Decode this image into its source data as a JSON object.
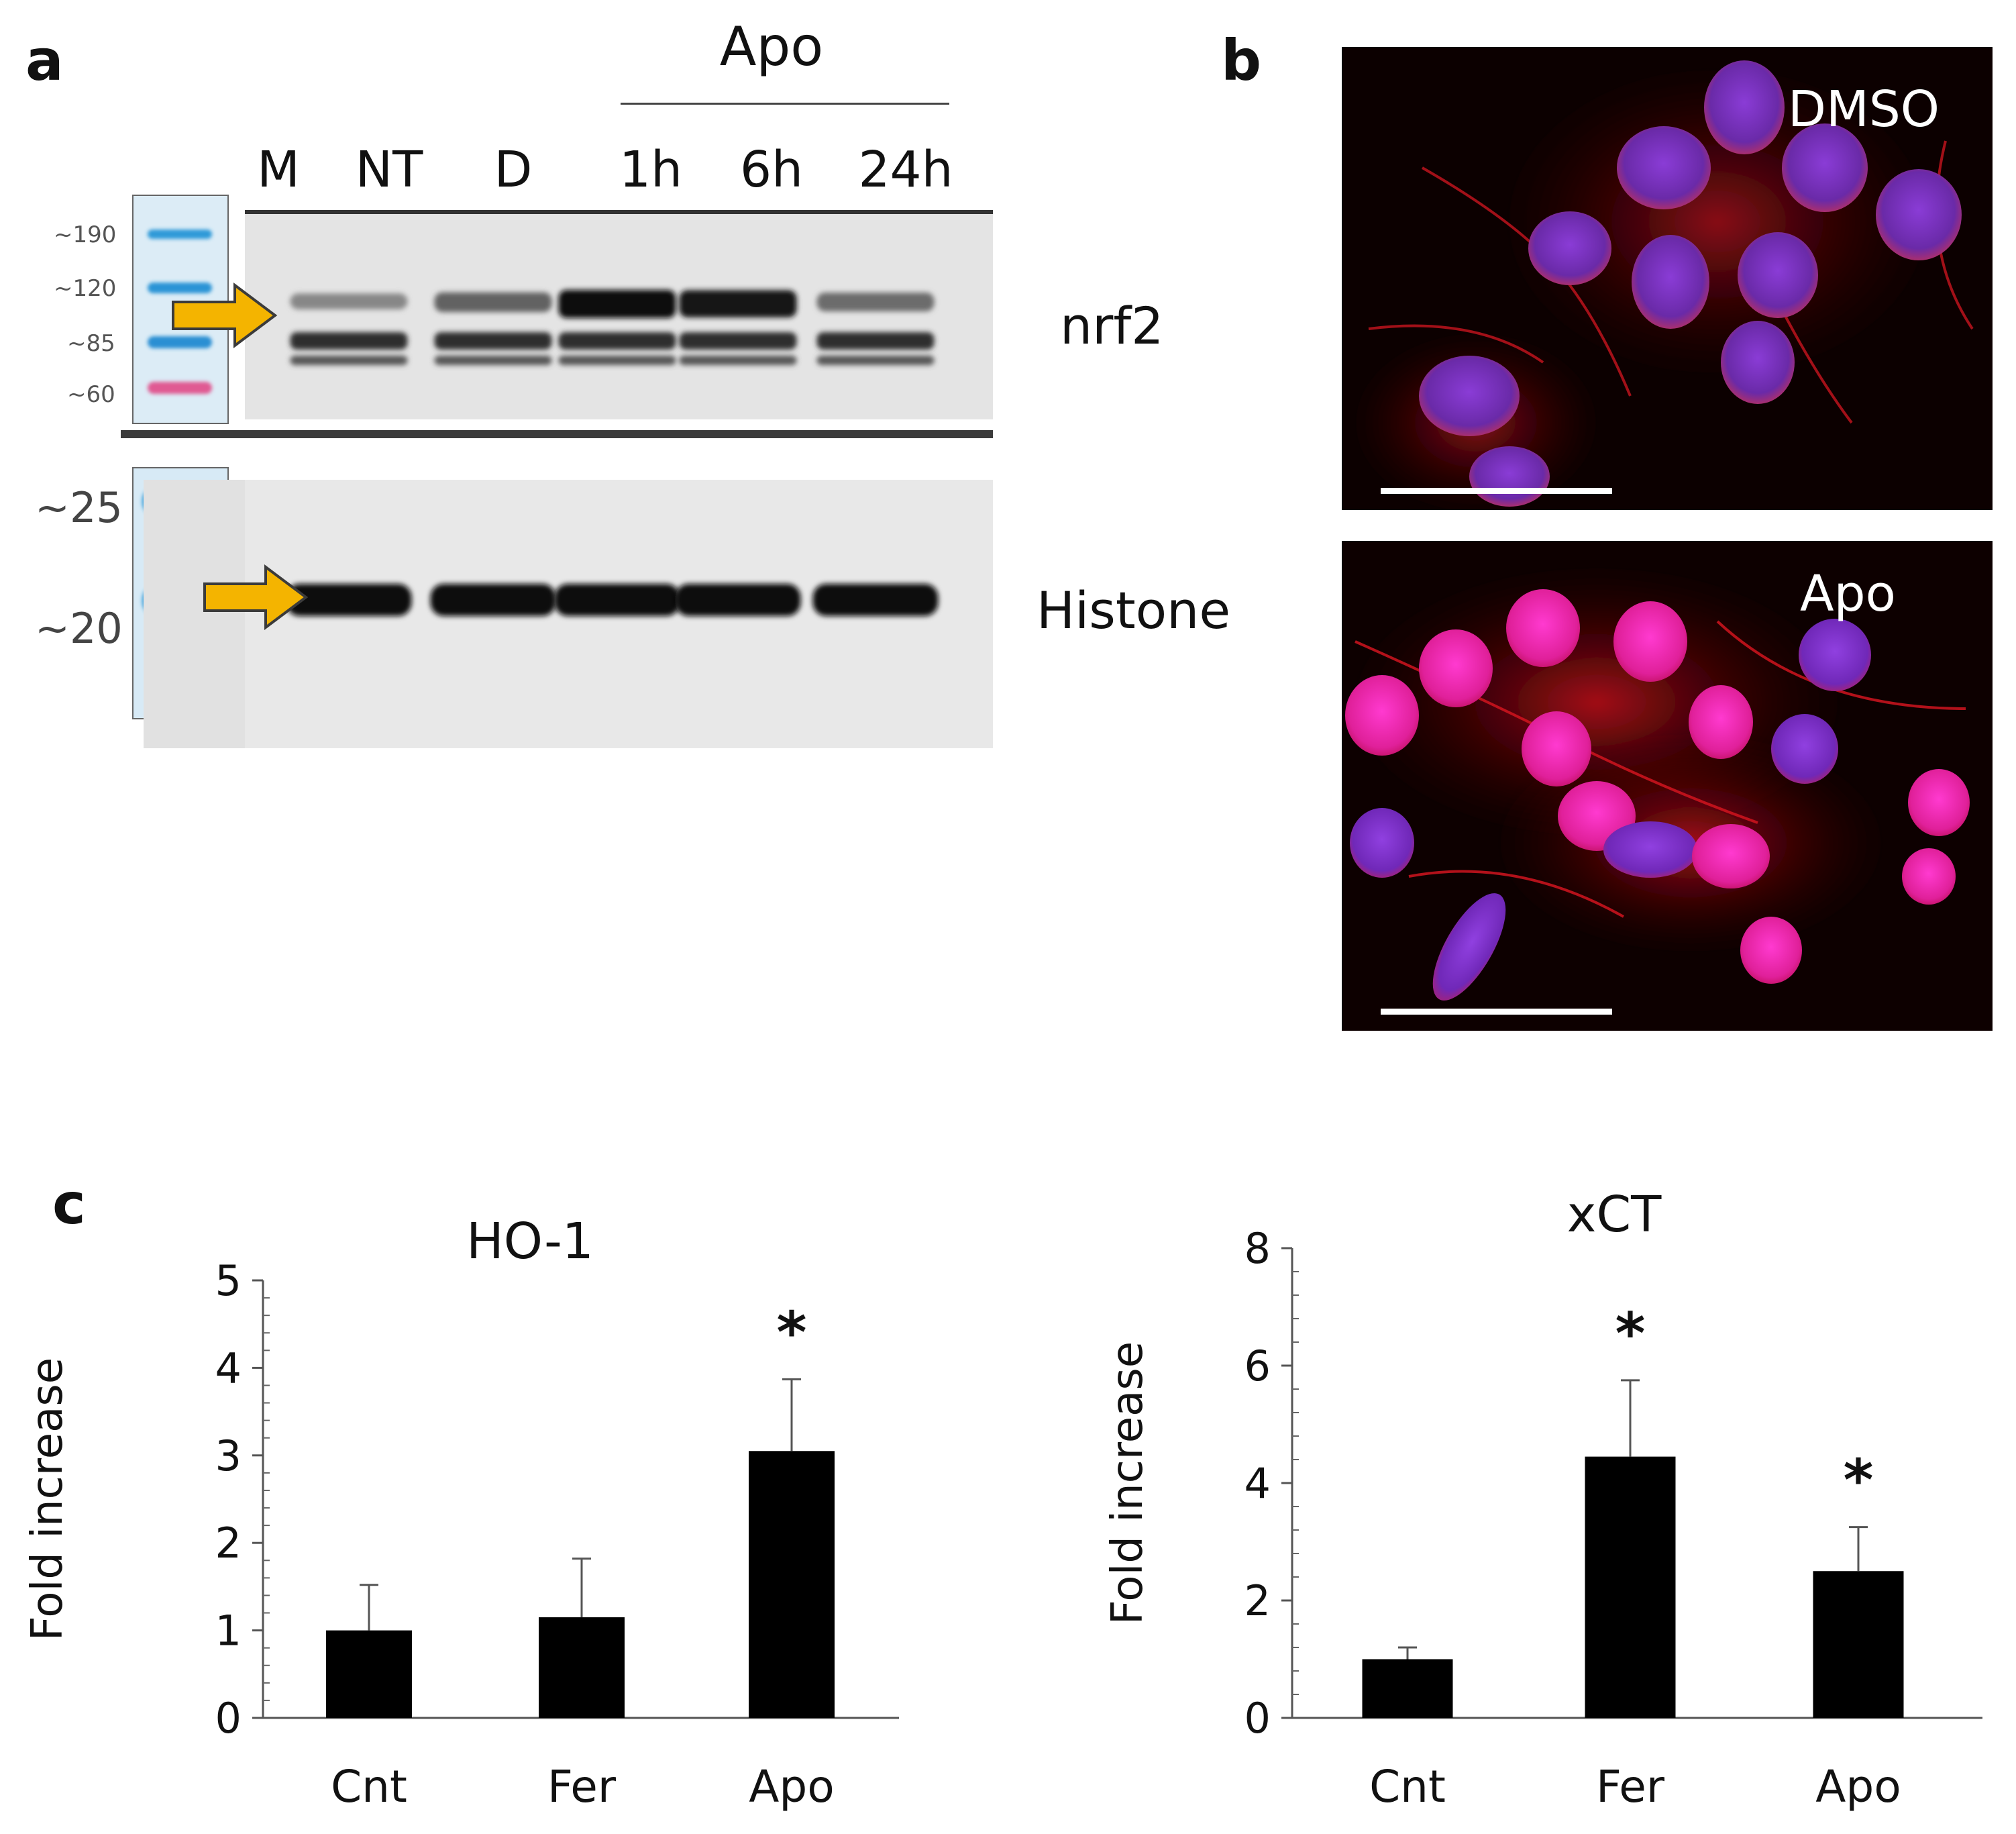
{
  "panels": {
    "a": "a",
    "b": "b",
    "c": "c"
  },
  "blot": {
    "treatment_group": "Apo",
    "lanes": [
      "M",
      "NT",
      "D",
      "1h",
      "6h",
      "24h"
    ],
    "top_markers": [
      "~190",
      "~120",
      "~85",
      "~60"
    ],
    "bottom_markers": [
      "~25",
      "~20"
    ],
    "top_protein": "nrf2",
    "bottom_protein": "Histone",
    "nrf2_band_intensity": [
      0.0,
      0.35,
      0.55,
      1.0,
      0.95,
      0.5
    ],
    "histone_band_intensity": [
      0.0,
      1.0,
      1.0,
      1.0,
      1.0,
      1.0
    ]
  },
  "micrographs": [
    {
      "label": "DMSO"
    },
    {
      "label": "Apo"
    }
  ],
  "chart_data": [
    {
      "type": "bar",
      "title": "HO-1",
      "categories": [
        "Cnt",
        "Fer",
        "Apo"
      ],
      "values": [
        1.0,
        1.15,
        3.05
      ],
      "errors": [
        0.52,
        0.67,
        0.82
      ],
      "significance": [
        "",
        "",
        "*"
      ],
      "ylabel": "Fold increase",
      "ylim": [
        0,
        5
      ],
      "yticks": [
        "0",
        "1",
        "2",
        "3",
        "4",
        "5"
      ]
    },
    {
      "type": "bar",
      "title": "xCT",
      "categories": [
        "Cnt",
        "Fer",
        "Apo"
      ],
      "values": [
        1.0,
        4.45,
        2.5
      ],
      "errors": [
        0.2,
        1.3,
        0.75
      ],
      "significance": [
        "",
        "*",
        "*"
      ],
      "ylabel": "Fold increase",
      "ylim": [
        0,
        8
      ],
      "yticks": [
        "0",
        "2",
        "4",
        "6",
        "8"
      ]
    }
  ]
}
